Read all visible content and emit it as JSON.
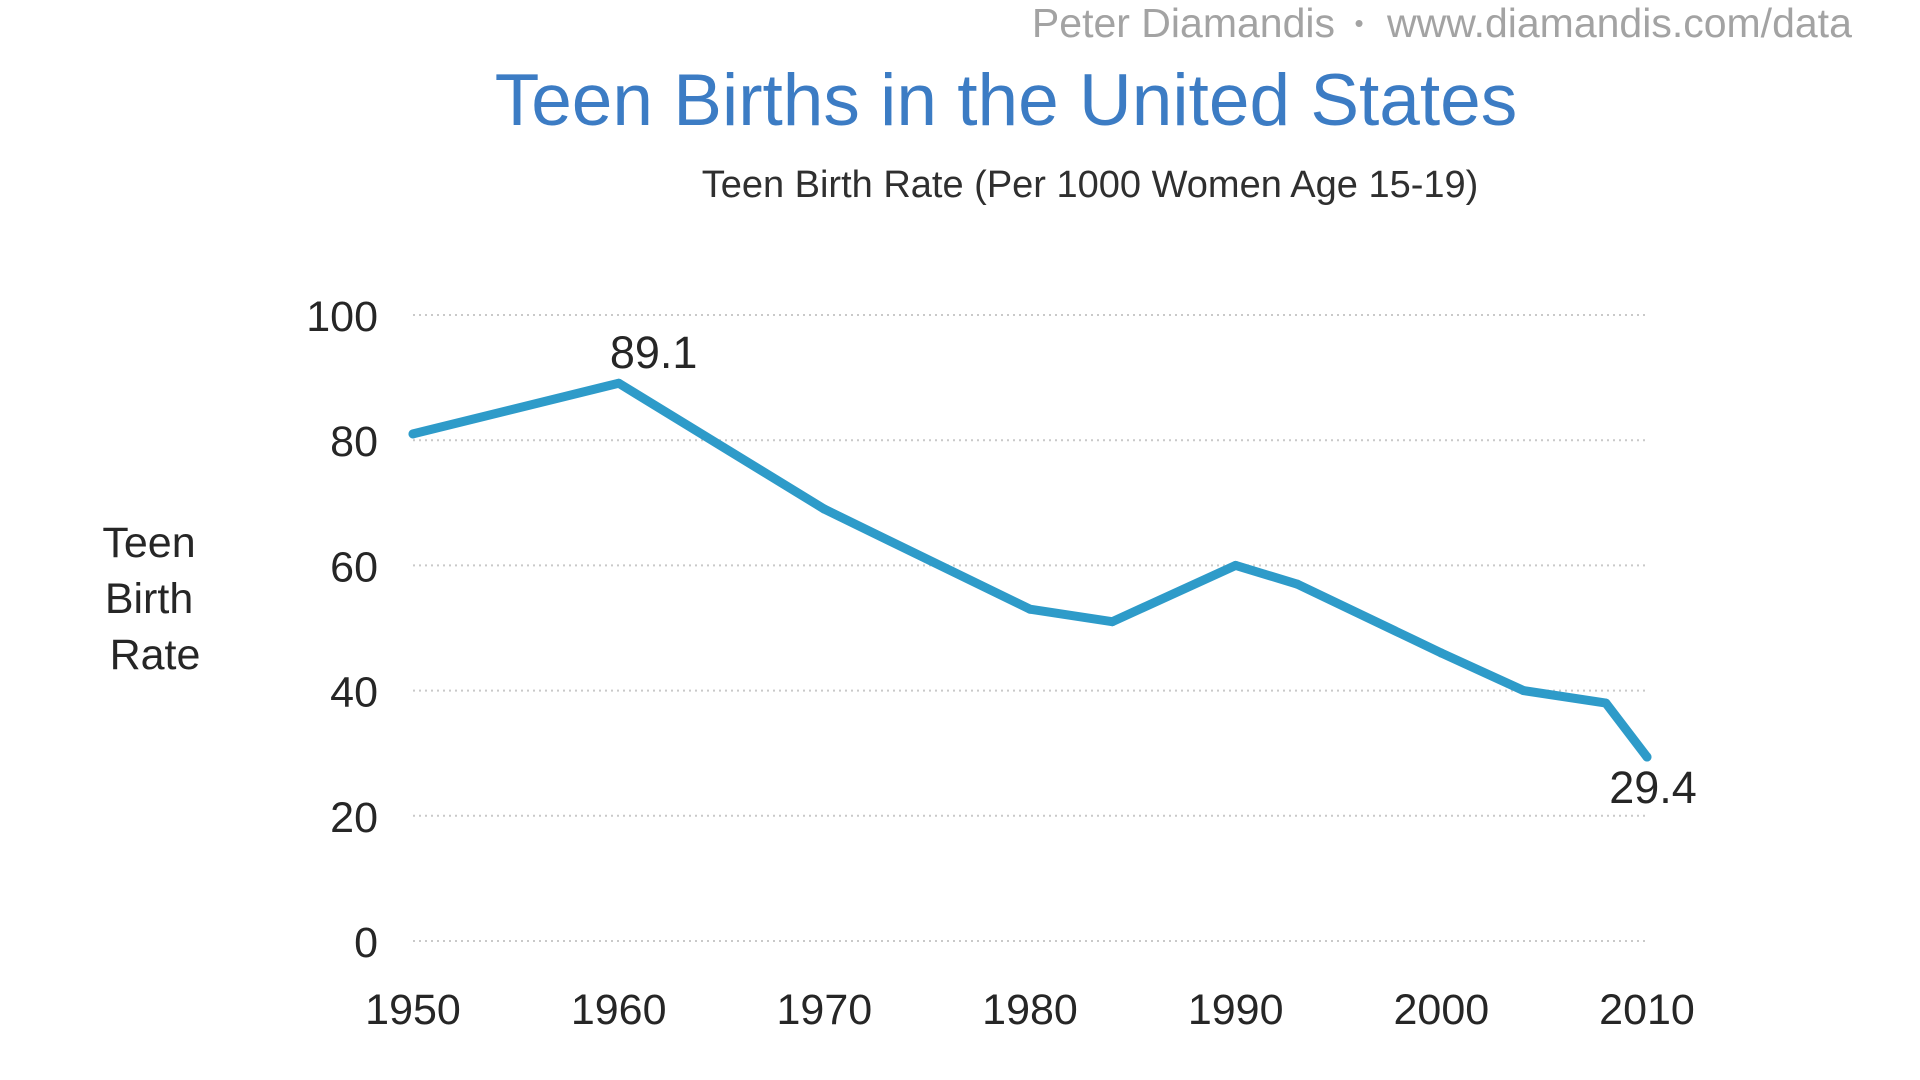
{
  "header": {
    "credit_name": "Peter Diamandis",
    "credit_separator": "•",
    "credit_url": "www.diamandis.com/data"
  },
  "colors": {
    "title": "#3c7cc4",
    "line": "#2e9bc9",
    "grid": "#c9c9c9",
    "text": "#262626",
    "credit": "#a3a3a3"
  },
  "chart_data": {
    "type": "line",
    "title": "Teen Births in the United States",
    "subtitle": "Teen Birth Rate (Per 1000 Women Age 15-19)",
    "ylabel_lines": [
      "Teen",
      "Birth",
      "Rate"
    ],
    "xlabel": "",
    "xlim": [
      1950,
      2010
    ],
    "ylim": [
      0,
      100
    ],
    "x_ticks": [
      1950,
      1960,
      1970,
      1980,
      1990,
      2000,
      2010
    ],
    "y_ticks": [
      0,
      20,
      40,
      60,
      80,
      100
    ],
    "grid": true,
    "series": [
      {
        "name": "Teen Birth Rate",
        "x": [
          1950,
          1960,
          1970,
          1980,
          1984,
          1990,
          1993,
          2000,
          2004,
          2008,
          2010
        ],
        "values": [
          81,
          89.1,
          69,
          53,
          51,
          60,
          57,
          46,
          40,
          38,
          29.4
        ]
      }
    ],
    "annotations": [
      {
        "x": 1960,
        "y": 89.1,
        "text": "89.1"
      },
      {
        "x": 2010,
        "y": 29.4,
        "text": "29.4"
      }
    ]
  }
}
